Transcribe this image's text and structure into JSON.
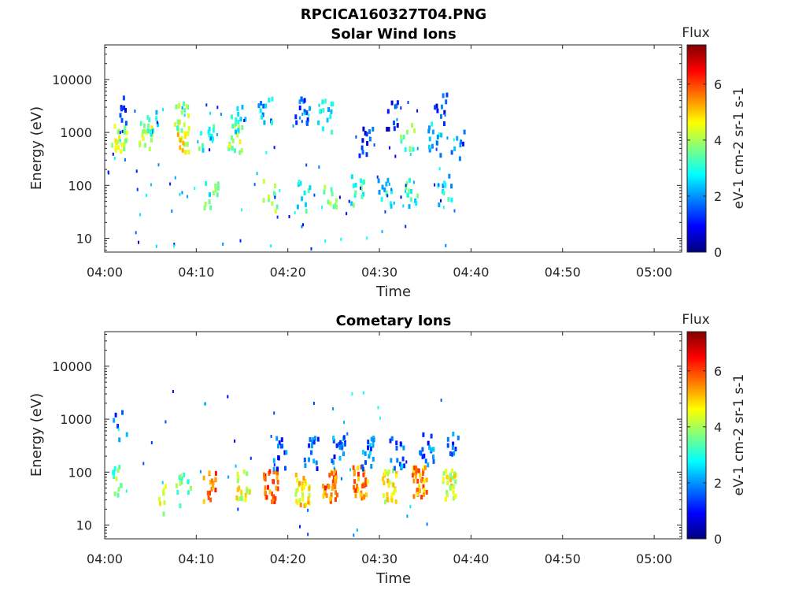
{
  "figure_title": "RPCICA160327T04.PNG",
  "colormap": [
    "#00007f",
    "#0000ff",
    "#007fff",
    "#00ffff",
    "#7fff7f",
    "#ffff00",
    "#ff7f00",
    "#ff0000",
    "#7f0000"
  ],
  "chart_data": [
    {
      "type": "heatmap",
      "title": "Solar Wind Ions",
      "xlabel": "Time",
      "ylabel": "Energy (eV)",
      "x_ticks": [
        "04:00",
        "04:10",
        "04:20",
        "04:30",
        "04:40",
        "04:50",
        "05:00"
      ],
      "x_range_minutes": [
        0,
        63
      ],
      "y_scale": "log",
      "y_ticks": [
        "10",
        "100",
        "1000",
        "10000"
      ],
      "y_range": [
        5.5,
        45000
      ],
      "data_end_minute": 39.5,
      "colorbar": {
        "title": "Flux",
        "label": "eV-1 cm-2 sr-1 s-1",
        "ticks": [
          "0",
          "2",
          "4",
          "6"
        ],
        "range": [
          0,
          7.4
        ]
      },
      "clusters": [
        {
          "t": 1.5,
          "e": 850,
          "level": 4.2,
          "count": 24
        },
        {
          "t": 1.5,
          "e": 2500,
          "level": 1.5,
          "count": 8
        },
        {
          "t": 4.5,
          "e": 900,
          "level": 4.0,
          "count": 16
        },
        {
          "t": 5.2,
          "e": 2000,
          "level": 2.5,
          "count": 10
        },
        {
          "t": 8.3,
          "e": 900,
          "level": 4.5,
          "count": 22
        },
        {
          "t": 8.3,
          "e": 2200,
          "level": 3.8,
          "count": 14
        },
        {
          "t": 11.0,
          "e": 950,
          "level": 3.0,
          "count": 12
        },
        {
          "t": 11.5,
          "e": 80,
          "level": 3.2,
          "count": 12
        },
        {
          "t": 14.2,
          "e": 900,
          "level": 4.0,
          "count": 18
        },
        {
          "t": 14.5,
          "e": 2000,
          "level": 2.5,
          "count": 10
        },
        {
          "t": 17.5,
          "e": 2500,
          "level": 2.3,
          "count": 12
        },
        {
          "t": 18.0,
          "e": 70,
          "level": 4.2,
          "count": 10
        },
        {
          "t": 21.5,
          "e": 2800,
          "level": 1.5,
          "count": 14
        },
        {
          "t": 21.5,
          "e": 70,
          "level": 2.8,
          "count": 10
        },
        {
          "t": 24.0,
          "e": 2200,
          "level": 2.5,
          "count": 14
        },
        {
          "t": 24.5,
          "e": 80,
          "level": 3.5,
          "count": 10
        },
        {
          "t": 27.5,
          "e": 90,
          "level": 3.0,
          "count": 14
        },
        {
          "t": 28.5,
          "e": 800,
          "level": 1.2,
          "count": 12
        },
        {
          "t": 30.5,
          "e": 80,
          "level": 2.8,
          "count": 12
        },
        {
          "t": 31.5,
          "e": 2500,
          "level": 1.2,
          "count": 10
        },
        {
          "t": 33.5,
          "e": 80,
          "level": 3.0,
          "count": 12
        },
        {
          "t": 33.0,
          "e": 800,
          "level": 3.5,
          "count": 10
        },
        {
          "t": 36.0,
          "e": 800,
          "level": 2.5,
          "count": 14
        },
        {
          "t": 36.5,
          "e": 3000,
          "level": 1.2,
          "count": 10
        },
        {
          "t": 37.0,
          "e": 90,
          "level": 2.6,
          "count": 12
        },
        {
          "t": 38.5,
          "e": 700,
          "level": 1.8,
          "count": 8
        }
      ],
      "scatter_count": 110
    },
    {
      "type": "heatmap",
      "title": "Cometary Ions",
      "xlabel": "Time",
      "ylabel": "Energy (eV)",
      "x_ticks": [
        "04:00",
        "04:10",
        "04:20",
        "04:30",
        "04:40",
        "04:50",
        "05:00"
      ],
      "x_range_minutes": [
        0,
        63
      ],
      "y_scale": "log",
      "y_ticks": [
        "10",
        "100",
        "1000",
        "10000"
      ],
      "y_range": [
        5.5,
        45000
      ],
      "data_end_minute": 38.5,
      "colorbar": {
        "title": "Flux",
        "label": "eV-1 cm-2 sr-1 s-1",
        "ticks": [
          "0",
          "2",
          "4",
          "6"
        ],
        "range": [
          0,
          7.4
        ]
      },
      "clusters": [
        {
          "t": 1.5,
          "e": 70,
          "level": 3.5,
          "count": 12
        },
        {
          "t": 1.5,
          "e": 900,
          "level": 1.8,
          "count": 6
        },
        {
          "t": 6.0,
          "e": 35,
          "level": 4.2,
          "count": 8
        },
        {
          "t": 8.5,
          "e": 50,
          "level": 3.5,
          "count": 14
        },
        {
          "t": 11.5,
          "e": 60,
          "level": 5.5,
          "count": 18
        },
        {
          "t": 15.0,
          "e": 60,
          "level": 4.5,
          "count": 22
        },
        {
          "t": 18.0,
          "e": 60,
          "level": 5.8,
          "count": 30
        },
        {
          "t": 19.0,
          "e": 250,
          "level": 1.5,
          "count": 14
        },
        {
          "t": 21.5,
          "e": 50,
          "level": 4.8,
          "count": 30
        },
        {
          "t": 22.5,
          "e": 250,
          "level": 1.6,
          "count": 16
        },
        {
          "t": 24.5,
          "e": 60,
          "level": 5.6,
          "count": 34
        },
        {
          "t": 25.5,
          "e": 300,
          "level": 1.7,
          "count": 18
        },
        {
          "t": 27.8,
          "e": 70,
          "level": 5.5,
          "count": 34
        },
        {
          "t": 28.8,
          "e": 250,
          "level": 1.8,
          "count": 18
        },
        {
          "t": 31.0,
          "e": 60,
          "level": 4.5,
          "count": 30
        },
        {
          "t": 31.8,
          "e": 250,
          "level": 1.8,
          "count": 16
        },
        {
          "t": 34.3,
          "e": 70,
          "level": 5.4,
          "count": 34
        },
        {
          "t": 35.0,
          "e": 300,
          "level": 1.6,
          "count": 18
        },
        {
          "t": 37.5,
          "e": 60,
          "level": 4.4,
          "count": 30
        },
        {
          "t": 38.0,
          "e": 300,
          "level": 1.6,
          "count": 14
        }
      ],
      "scatter_count": 40
    }
  ]
}
